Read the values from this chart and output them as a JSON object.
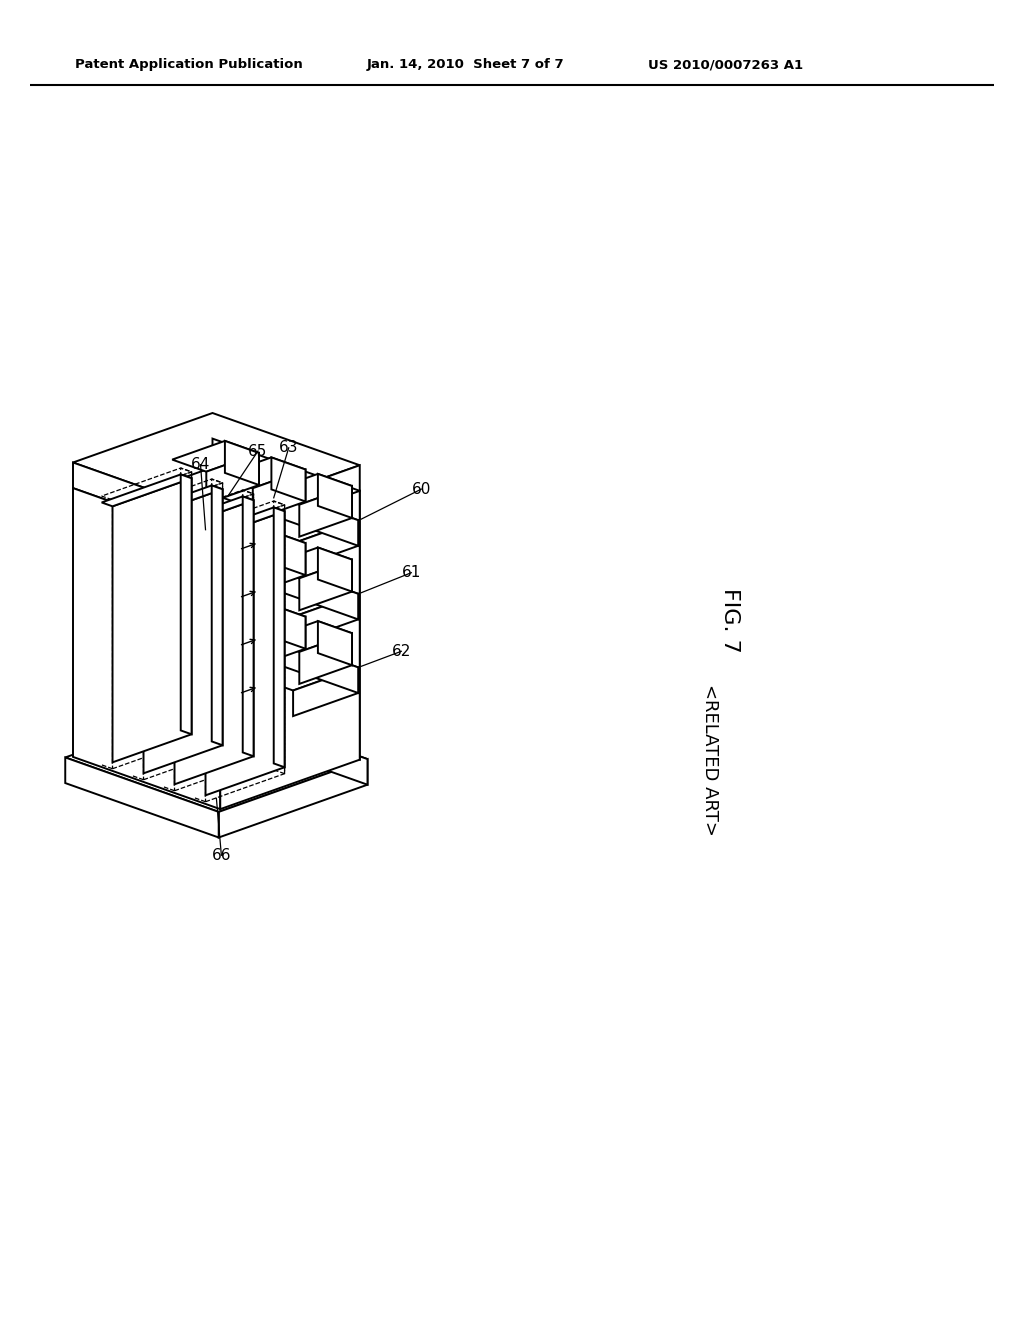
{
  "bg_color": "#ffffff",
  "line_color": "#000000",
  "dashed_color": "#000000",
  "header_left": "Patent Application Publication",
  "header_mid": "Jan. 14, 2010  Sheet 7 of 7",
  "header_right": "US 2010/0007263 A1",
  "fig_label": "FIG. 7",
  "fig_sublabel": "<RELATED ART>",
  "figsize": [
    10.24,
    13.2
  ],
  "dpi": 100
}
